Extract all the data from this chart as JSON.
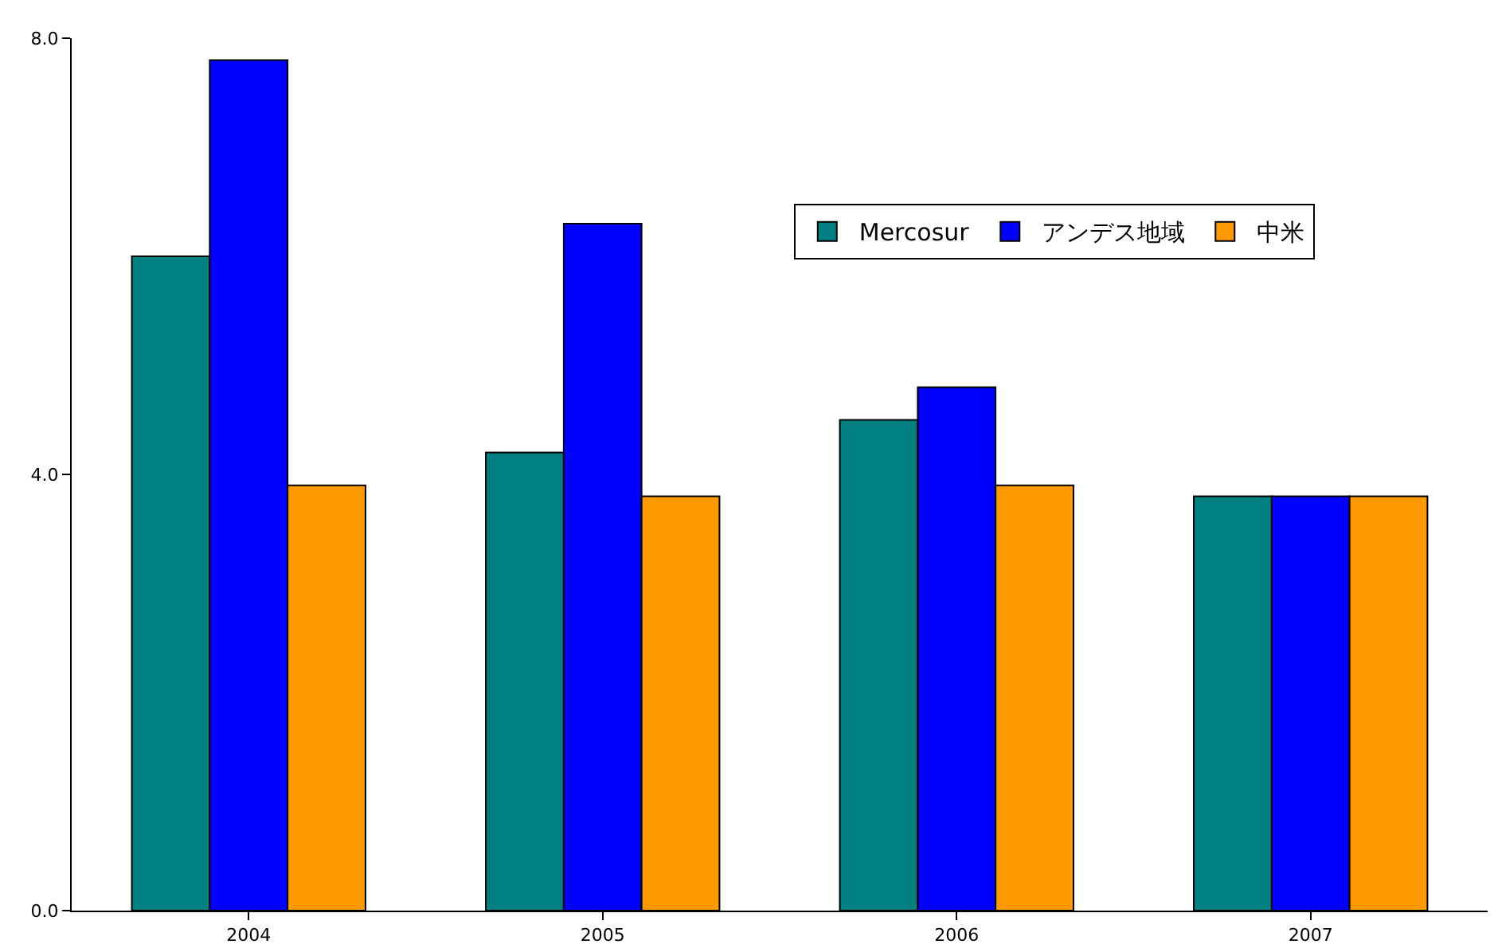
{
  "chart_data": {
    "type": "bar",
    "categories": [
      "2004",
      "2005",
      "2006",
      "2007"
    ],
    "series": [
      {
        "name": "Mercosur",
        "color": "#008080",
        "values": [
          6.0,
          4.2,
          4.5,
          3.8
        ]
      },
      {
        "name": "アンデス地域",
        "color": "#0000ff",
        "values": [
          7.8,
          6.3,
          4.8,
          3.8
        ]
      },
      {
        "name": "中米",
        "color": "#ff9900",
        "values": [
          3.9,
          3.8,
          3.9,
          3.8
        ]
      }
    ],
    "ylim": [
      0,
      8
    ],
    "yticks": [
      {
        "value": 0,
        "label": "0.0"
      },
      {
        "value": 4,
        "label": "4.0"
      },
      {
        "value": 8,
        "label": "8.0"
      }
    ],
    "legend": "top right"
  }
}
